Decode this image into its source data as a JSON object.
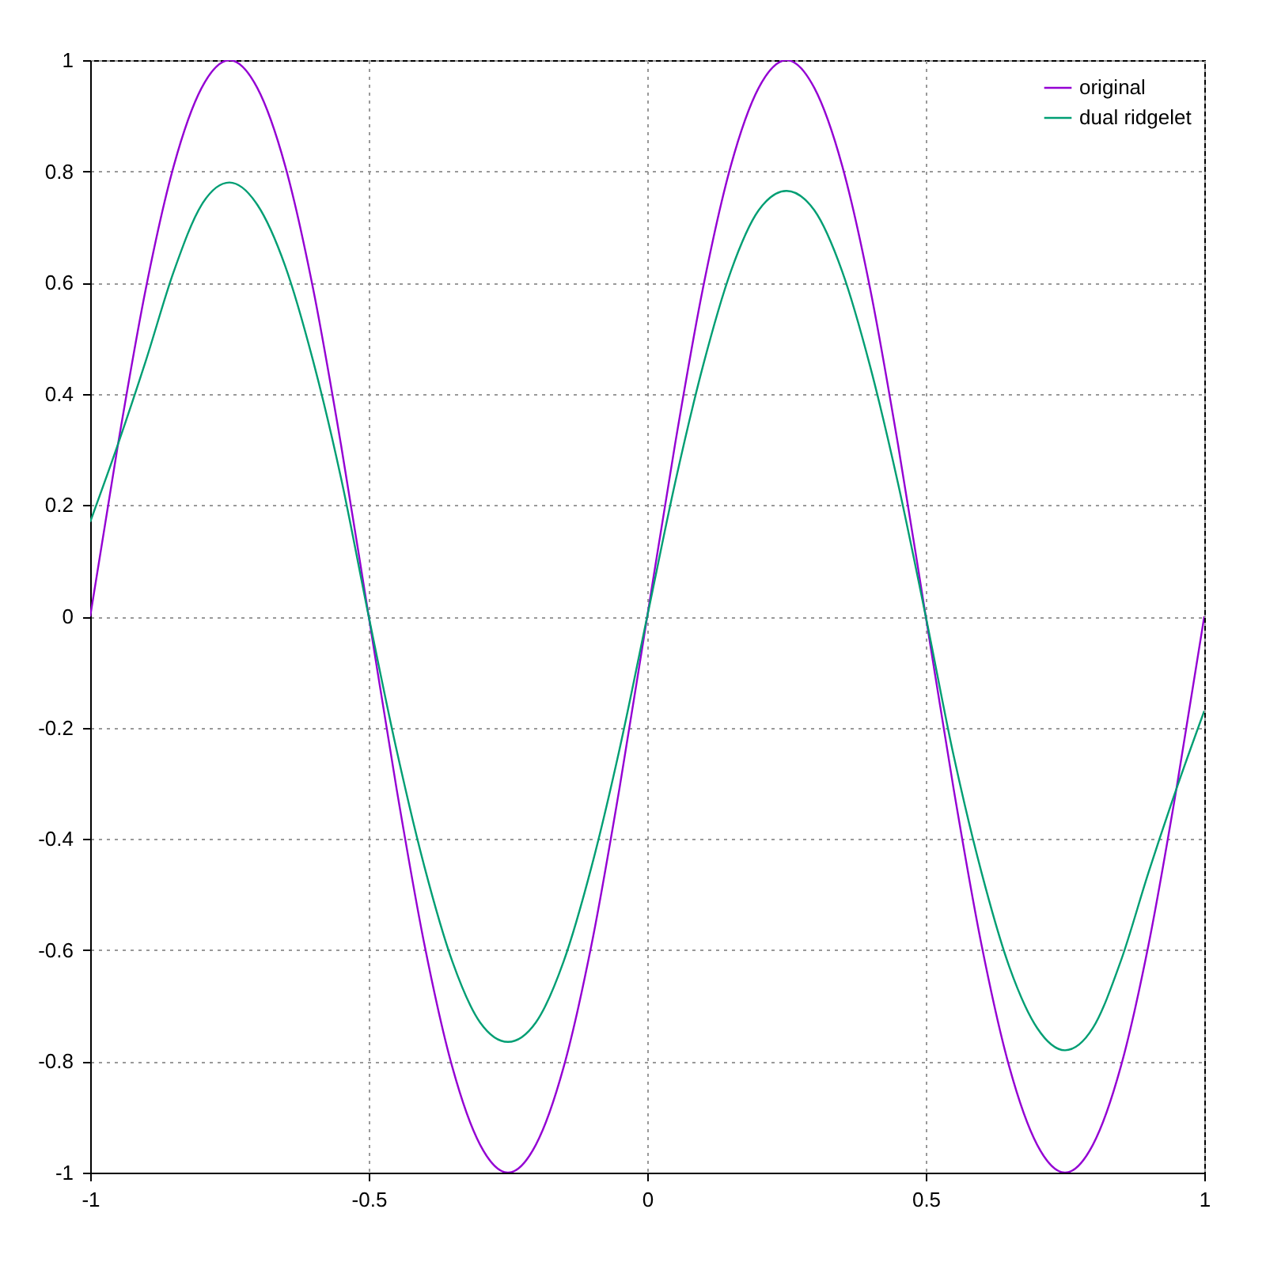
{
  "chart_data": {
    "type": "line",
    "x": [
      -1,
      -0.95,
      -0.9,
      -0.85,
      -0.8,
      -0.75,
      -0.7,
      -0.65,
      -0.6,
      -0.55,
      -0.5,
      -0.45,
      -0.4,
      -0.35,
      -0.3,
      -0.25,
      -0.2,
      -0.15,
      -0.1,
      -0.05,
      0,
      0.05,
      0.1,
      0.15,
      0.2,
      0.25,
      0.3,
      0.35,
      0.4,
      0.45,
      0.5,
      0.55,
      0.6,
      0.65,
      0.7,
      0.75,
      0.8,
      0.85,
      0.9,
      0.95,
      1
    ],
    "series": [
      {
        "name": "original",
        "color": "#9400d3",
        "values": [
          0,
          0.31,
          0.59,
          0.81,
          0.95,
          1,
          0.95,
          0.81,
          0.59,
          0.31,
          0,
          -0.31,
          -0.59,
          -0.81,
          -0.95,
          -1,
          -0.95,
          -0.81,
          -0.59,
          -0.31,
          0,
          0.31,
          0.59,
          0.81,
          0.95,
          1,
          0.95,
          0.81,
          0.59,
          0.31,
          0,
          -0.31,
          -0.59,
          -0.81,
          -0.95,
          -1,
          -0.95,
          -0.81,
          -0.59,
          -0.31,
          0
        ]
      },
      {
        "name": "dual ridgelet",
        "color": "#009e73",
        "values": [
          0.17,
          0.31,
          0.46,
          0.62,
          0.74,
          0.78,
          0.74,
          0.63,
          0.46,
          0.25,
          0,
          -0.24,
          -0.45,
          -0.62,
          -0.73,
          -0.765,
          -0.73,
          -0.62,
          -0.45,
          -0.24,
          0,
          0.24,
          0.45,
          0.62,
          0.73,
          0.765,
          0.73,
          0.62,
          0.45,
          0.24,
          0,
          -0.25,
          -0.46,
          -0.63,
          -0.74,
          -0.78,
          -0.74,
          -0.62,
          -0.46,
          -0.31,
          -0.17
        ]
      }
    ],
    "xlim": [
      -1,
      1
    ],
    "xticks": [
      -1,
      -0.5,
      0,
      0.5,
      1
    ],
    "ylim": [
      -1,
      1
    ],
    "yticks": [
      -1,
      -0.8,
      -0.6,
      -0.4,
      -0.2,
      0,
      0.2,
      0.4,
      0.6,
      0.8,
      1
    ],
    "grid": true,
    "legend": "top right",
    "marker": "none",
    "line_style": "solid"
  }
}
